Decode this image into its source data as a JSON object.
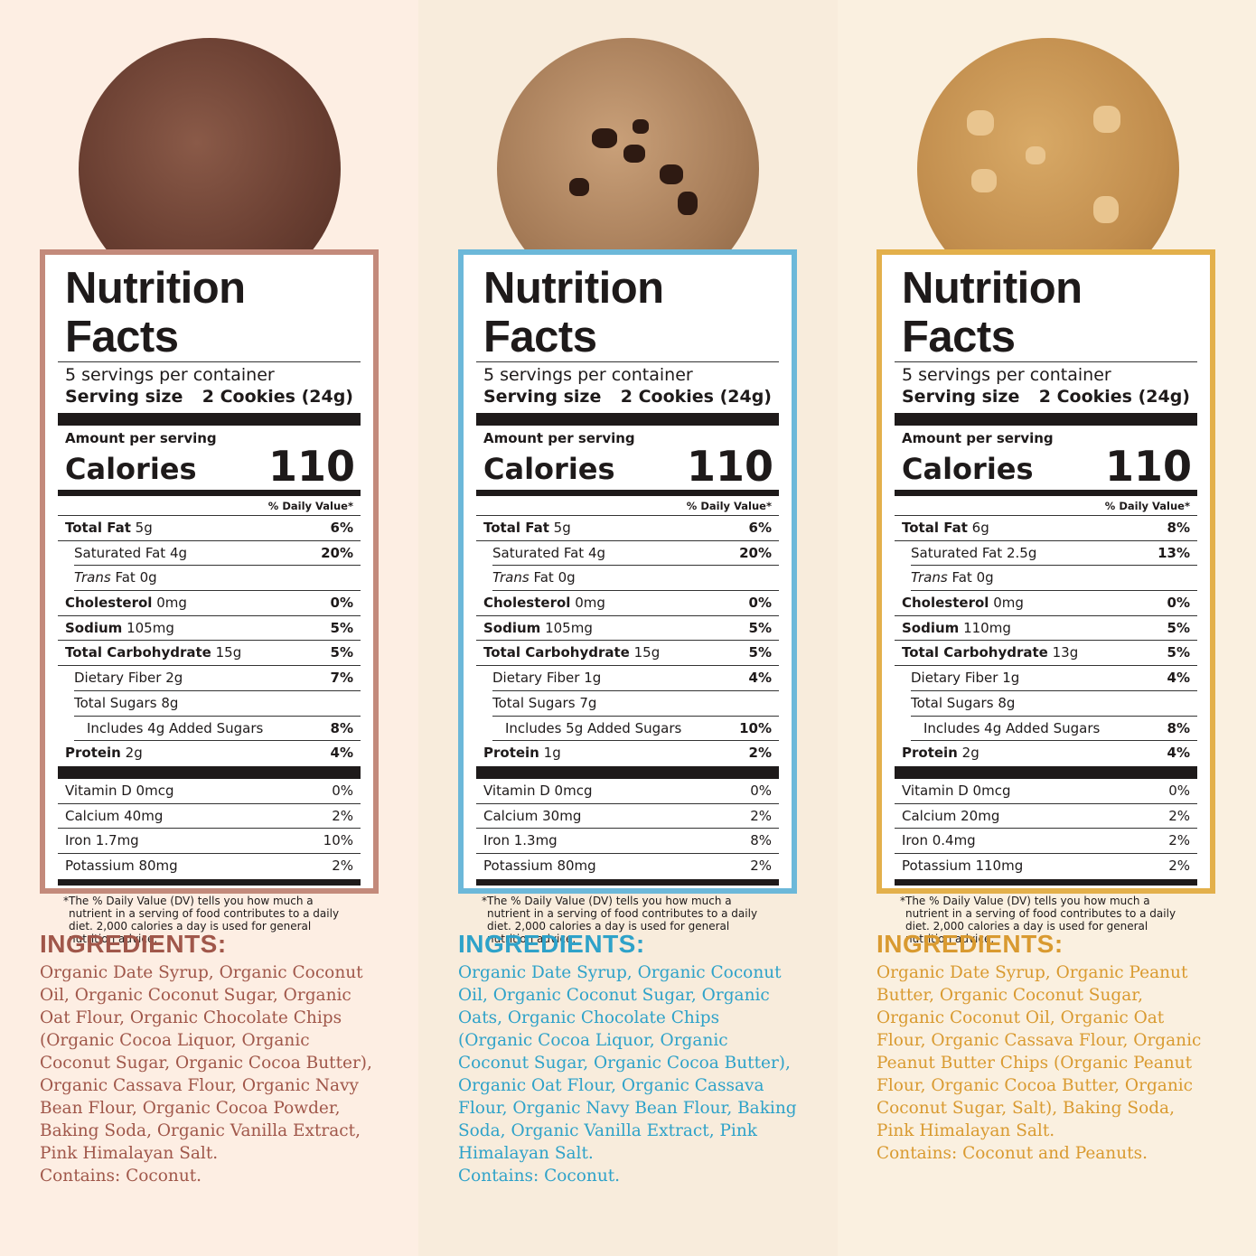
{
  "footnote_star": "*",
  "labels": [
    {
      "accent": "#c38a7b",
      "text_color": "#a0574a",
      "cookie": "chocolate-cookie",
      "title": "Nutrition Facts",
      "servings": "5 servings per container",
      "serving_size_label": "Serving size",
      "serving_size": "2 Cookies (24g)",
      "amount_per_serving": "Amount per serving",
      "calories_label": "Calories",
      "calories": "110",
      "daily_value": "% Daily Value*",
      "rows": [
        {
          "name": "Total Fat",
          "amount": "5g",
          "dv": "6%",
          "level": 0
        },
        {
          "name": "Saturated Fat",
          "amount": "4g",
          "dv": "20%",
          "level": 1
        },
        {
          "name_italic": "Trans",
          "name": " Fat",
          "amount": "0g",
          "dv": "",
          "level": 1
        },
        {
          "name": "Cholesterol",
          "amount": "0mg",
          "dv": "0%",
          "level": 0
        },
        {
          "name": "Sodium",
          "amount": "105mg",
          "dv": "5%",
          "level": 0
        },
        {
          "name": "Total Carbohydrate",
          "amount": "15g",
          "dv": "5%",
          "level": 0
        },
        {
          "name": "Dietary Fiber",
          "amount": "2g",
          "dv": "7%",
          "level": 1
        },
        {
          "name": "Total Sugars",
          "amount": "8g",
          "dv": "",
          "level": 1
        },
        {
          "name": "Includes 4g Added Sugars",
          "amount": "",
          "dv": "8%",
          "level": 2
        },
        {
          "name": "Protein",
          "amount": "2g",
          "dv": "4%",
          "level": 0
        }
      ],
      "vitamins": [
        {
          "name": "Vitamin D 0mcg",
          "dv": "0%"
        },
        {
          "name": "Calcium 40mg",
          "dv": "2%"
        },
        {
          "name": "Iron 1.7mg",
          "dv": "10%"
        },
        {
          "name": "Potassium 80mg",
          "dv": "2%"
        }
      ],
      "footnote": "The % Daily Value (DV) tells you how much a nutrient in a serving of food contributes to a daily diet. 2,000 calories a day is used for general nutrition advice.",
      "ingredients_heading": "INGREDIENTS:",
      "ingredients": "Organic Date Syrup, Organic Coconut Oil, Organic Coconut Sugar, Organic Oat Flour, Organic Chocolate Chips (Organic Cocoa Liquor, Organic Coconut Sugar, Organic Cocoa Butter), Organic Cassava Flour, Organic Navy Bean Flour, Organic Cocoa Powder, Baking Soda, Organic Vanilla Extract, Pink Himalayan Salt.",
      "contains": "Contains: Coconut."
    },
    {
      "accent": "#6cb8d9",
      "text_color": "#2ea2c9",
      "cookie": "chocolate-chip-cookie",
      "title": "Nutrition Facts",
      "servings": "5 servings per container",
      "serving_size_label": "Serving size",
      "serving_size": "2 Cookies (24g)",
      "amount_per_serving": "Amount per serving",
      "calories_label": "Calories",
      "calories": "110",
      "daily_value": "% Daily Value*",
      "rows": [
        {
          "name": "Total Fat",
          "amount": "5g",
          "dv": "6%",
          "level": 0
        },
        {
          "name": "Saturated Fat",
          "amount": "4g",
          "dv": "20%",
          "level": 1
        },
        {
          "name_italic": "Trans",
          "name": " Fat",
          "amount": "0g",
          "dv": "",
          "level": 1
        },
        {
          "name": "Cholesterol",
          "amount": "0mg",
          "dv": "0%",
          "level": 0
        },
        {
          "name": "Sodium",
          "amount": "105mg",
          "dv": "5%",
          "level": 0
        },
        {
          "name": "Total Carbohydrate",
          "amount": "15g",
          "dv": "5%",
          "level": 0
        },
        {
          "name": "Dietary Fiber",
          "amount": "1g",
          "dv": "4%",
          "level": 1
        },
        {
          "name": "Total Sugars",
          "amount": "7g",
          "dv": "",
          "level": 1
        },
        {
          "name": "Includes 5g Added Sugars",
          "amount": "",
          "dv": "10%",
          "level": 2
        },
        {
          "name": "Protein",
          "amount": "1g",
          "dv": "2%",
          "level": 0
        }
      ],
      "vitamins": [
        {
          "name": "Vitamin D 0mcg",
          "dv": "0%"
        },
        {
          "name": "Calcium 30mg",
          "dv": "2%"
        },
        {
          "name": "Iron 1.3mg",
          "dv": "8%"
        },
        {
          "name": "Potassium 80mg",
          "dv": "2%"
        }
      ],
      "footnote": "The % Daily Value (DV) tells you how much a nutrient in a serving of food contributes to a daily diet. 2,000 calories a day is used for general nutrition advice.",
      "ingredients_heading": "INGREDIENTS:",
      "ingredients": "Organic Date Syrup, Organic Coconut Oil, Organic Coconut Sugar, Organic Oats, Organic Chocolate Chips (Organic Cocoa Liquor, Organic Coconut Sugar, Organic Cocoa Butter), Organic Oat Flour, Organic Cassava Flour, Organic Navy Bean Flour, Baking Soda, Organic Vanilla Extract, Pink Himalayan Salt.",
      "contains": "Contains: Coconut."
    },
    {
      "accent": "#e3b04b",
      "text_color": "#d99a30",
      "cookie": "peanut-butter-cookie",
      "title": "Nutrition Facts",
      "servings": "5 servings per container",
      "serving_size_label": "Serving size",
      "serving_size": "2 Cookies (24g)",
      "amount_per_serving": "Amount per serving",
      "calories_label": "Calories",
      "calories": "110",
      "daily_value": "% Daily Value*",
      "rows": [
        {
          "name": "Total Fat",
          "amount": "6g",
          "dv": "8%",
          "level": 0
        },
        {
          "name": "Saturated Fat",
          "amount": "2.5g",
          "dv": "13%",
          "level": 1
        },
        {
          "name_italic": "Trans",
          "name": " Fat",
          "amount": "0g",
          "dv": "",
          "level": 1
        },
        {
          "name": "Cholesterol",
          "amount": "0mg",
          "dv": "0%",
          "level": 0
        },
        {
          "name": "Sodium",
          "amount": "110mg",
          "dv": "5%",
          "level": 0
        },
        {
          "name": "Total Carbohydrate",
          "amount": "13g",
          "dv": "5%",
          "level": 0
        },
        {
          "name": "Dietary Fiber",
          "amount": "1g",
          "dv": "4%",
          "level": 1
        },
        {
          "name": "Total Sugars",
          "amount": "8g",
          "dv": "",
          "level": 1
        },
        {
          "name": "Includes 4g Added Sugars",
          "amount": "",
          "dv": "8%",
          "level": 2
        },
        {
          "name": "Protein",
          "amount": "2g",
          "dv": "4%",
          "level": 0
        }
      ],
      "vitamins": [
        {
          "name": "Vitamin D 0mcg",
          "dv": "0%"
        },
        {
          "name": "Calcium 20mg",
          "dv": "2%"
        },
        {
          "name": "Iron 0.4mg",
          "dv": "2%"
        },
        {
          "name": "Potassium 110mg",
          "dv": "2%"
        }
      ],
      "footnote": "The % Daily Value (DV) tells you how much a nutrient in a serving of food contributes to a daily diet. 2,000 calories a day is used for general nutrition advice.",
      "ingredients_heading": "INGREDIENTS:",
      "ingredients": "Organic Date Syrup, Organic Peanut Butter, Organic Coconut Sugar, Organic Coconut Oil, Organic Oat Flour, Organic Cassava Flour, Organic Peanut Butter Chips (Organic Peanut Flour, Organic Cocoa Butter, Organic Coconut Sugar, Salt), Baking Soda, Pink Himalayan Salt.",
      "contains": "Contains: Coconut and Peanuts."
    }
  ]
}
